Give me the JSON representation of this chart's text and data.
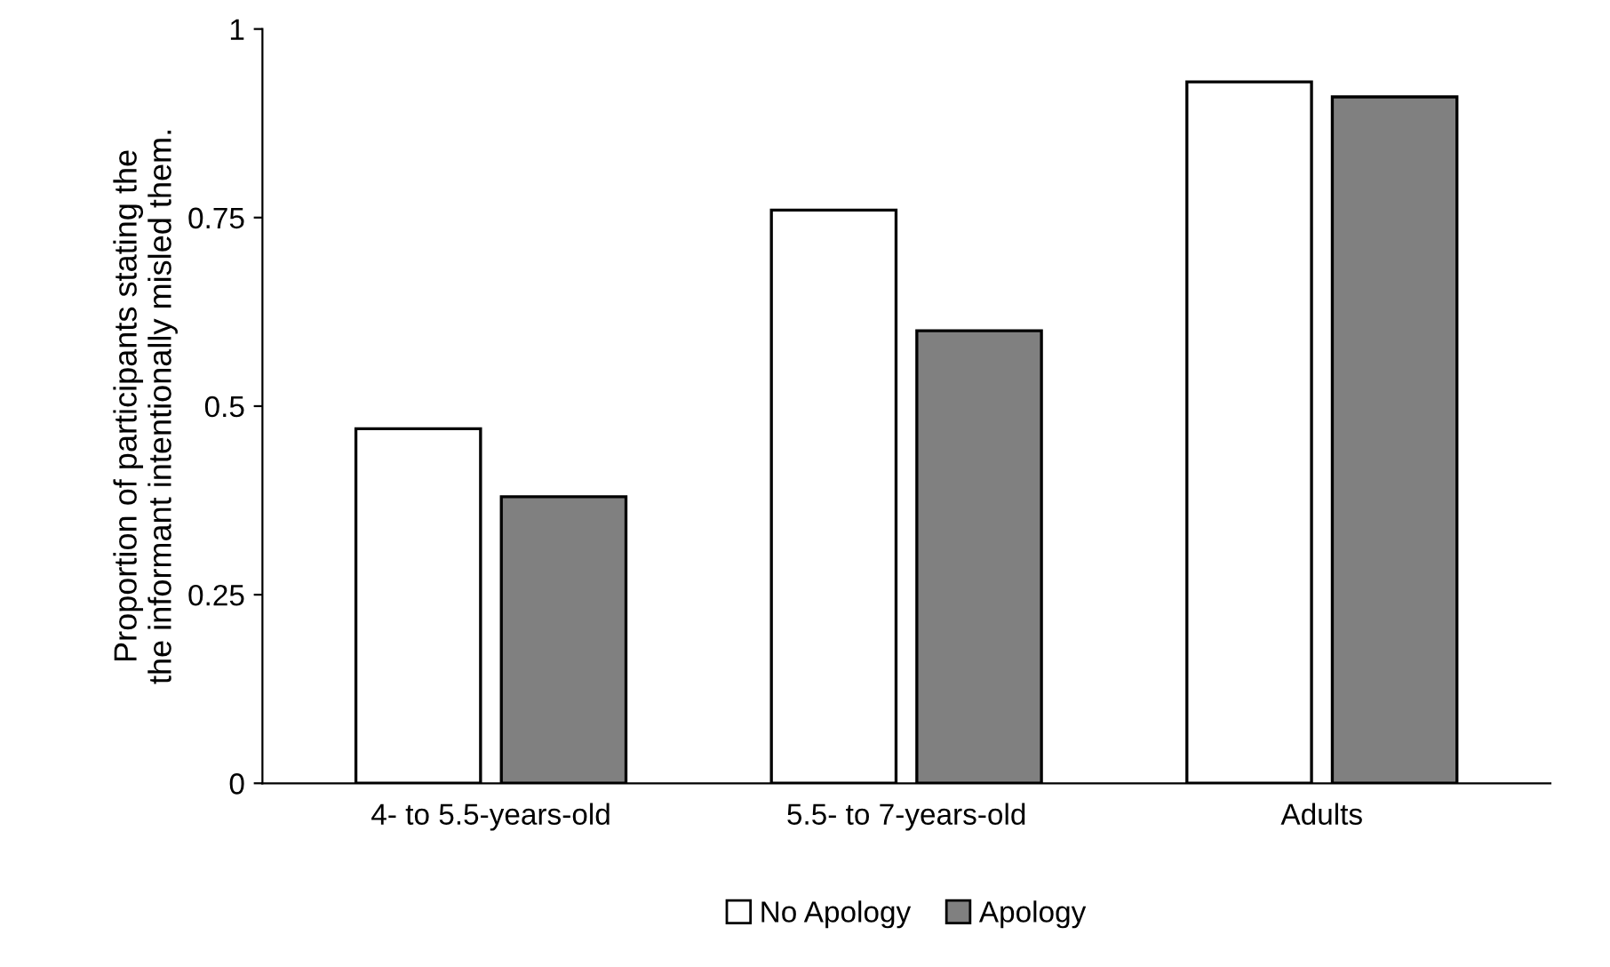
{
  "chart_data": {
    "type": "bar",
    "ylabel": "Proportion of participants stating the\nthe informant intentionally misled them.",
    "categories": [
      "4- to 5.5-years-old",
      "5.5- to 7-years-old",
      "Adults"
    ],
    "series": [
      {
        "name": "No Apology",
        "color": "#ffffff",
        "values": [
          0.47,
          0.76,
          0.93
        ]
      },
      {
        "name": "Apology",
        "color": "#808080",
        "values": [
          0.38,
          0.6,
          0.91
        ]
      }
    ],
    "ylim": [
      0,
      1
    ],
    "yticks": [
      0,
      0.25,
      0.5,
      0.75,
      1
    ],
    "grid": false,
    "legend": "bottom"
  }
}
